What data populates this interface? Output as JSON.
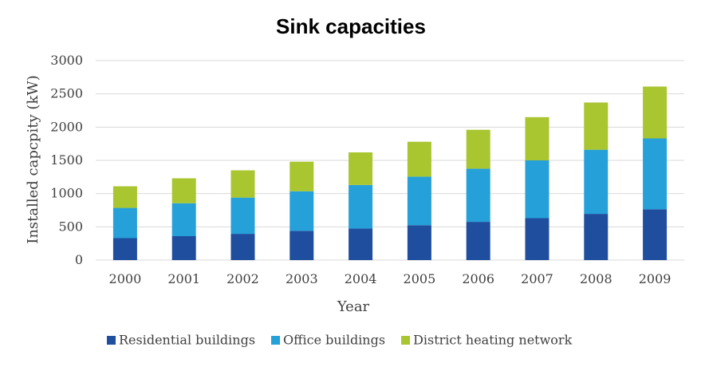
{
  "chart_data": {
    "type": "bar",
    "stacked": true,
    "title": "Sink capacities",
    "xlabel": "Year",
    "ylabel": "Installed capcpity (kW)",
    "categories": [
      "2000",
      "2001",
      "2002",
      "2003",
      "2004",
      "2005",
      "2006",
      "2007",
      "2008",
      "2009"
    ],
    "series": [
      {
        "name": "Residential buildings",
        "color": "#1f4e9e",
        "values": [
          330,
          360,
          395,
          440,
          475,
          525,
          575,
          630,
          695,
          765
        ]
      },
      {
        "name": "Office buildings",
        "color": "#25a0d9",
        "values": [
          455,
          495,
          545,
          595,
          655,
          730,
          800,
          870,
          965,
          1065
        ]
      },
      {
        "name": "District heating network",
        "color": "#a9c52f",
        "values": [
          325,
          375,
          410,
          445,
          490,
          525,
          585,
          650,
          710,
          780
        ]
      }
    ],
    "ylim": [
      0,
      3000
    ],
    "yticks": [
      0,
      500,
      1000,
      1500,
      2000,
      2500,
      3000
    ],
    "grid": true,
    "legend_position": "bottom"
  }
}
